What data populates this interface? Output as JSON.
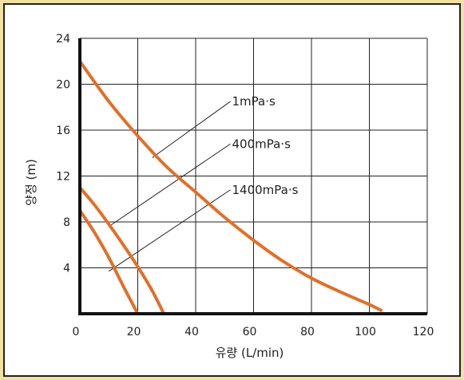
{
  "chart_data": {
    "type": "line",
    "xlabel": "유량 (L/min)",
    "ylabel": "양정 (m)",
    "xlim": [
      0,
      120
    ],
    "ylim": [
      0,
      24
    ],
    "xticks": [
      0,
      20,
      40,
      60,
      80,
      100,
      120
    ],
    "yticks": [
      4,
      8,
      12,
      16,
      20,
      24
    ],
    "grid": true,
    "line_color": "#e0702a",
    "series": [
      {
        "name": "1mPa·s",
        "x": [
          0,
          10,
          20,
          30,
          40,
          50,
          60,
          70,
          80,
          90,
          100,
          104
        ],
        "y": [
          22,
          18.5,
          15.5,
          12.8,
          10.6,
          8.4,
          6.4,
          4.6,
          3.1,
          1.9,
          0.8,
          0.3
        ]
      },
      {
        "name": "400mPa·s",
        "x": [
          0,
          5,
          10,
          15,
          20,
          25,
          29
        ],
        "y": [
          11,
          9.5,
          7.8,
          6.0,
          4.1,
          2.0,
          0
        ]
      },
      {
        "name": "1400mPa·s",
        "x": [
          0,
          5,
          10,
          15,
          20
        ],
        "y": [
          9,
          7.1,
          4.9,
          2.4,
          0
        ]
      }
    ],
    "annotations": [
      {
        "text": "1mPa·s",
        "x": 52,
        "y": 18.5,
        "x_to": 25,
        "y_to": 13.6
      },
      {
        "text": "400mPa·s",
        "x": 52,
        "y": 14.8,
        "x_to": 10,
        "y_to": 7.6
      },
      {
        "text": "1400mPa·s",
        "x": 52,
        "y": 10.8,
        "x_to": 10,
        "y_to": 3.7
      }
    ]
  }
}
